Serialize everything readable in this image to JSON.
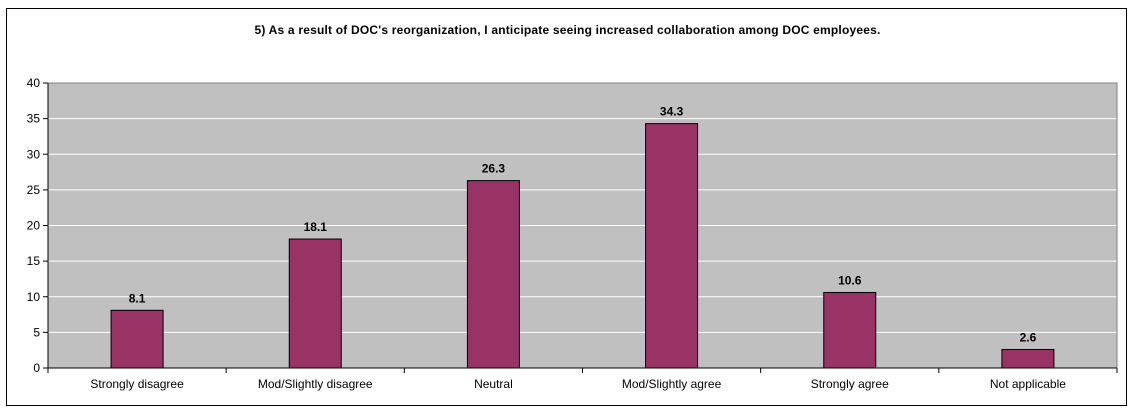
{
  "chart_data": {
    "type": "bar",
    "title": "5) As a result of DOC's reorganization, I anticipate seeing increased collaboration among DOC employees.",
    "categories": [
      "Strongly disagree",
      "Mod/Slightly disagree",
      "Neutral",
      "Mod/Slightly agree",
      "Strongly agree",
      "Not applicable"
    ],
    "values": [
      8.1,
      18.1,
      26.3,
      34.3,
      10.6,
      2.6
    ],
    "value_labels": [
      "8.1",
      "18.1",
      "26.3",
      "34.3",
      "10.6",
      "2.6"
    ],
    "ylim": [
      0,
      40
    ],
    "yticks": [
      "0",
      "5",
      "10",
      "15",
      "20",
      "25",
      "30",
      "35",
      "40"
    ],
    "xlabel": "",
    "ylabel": "",
    "grid": true,
    "legend": "none",
    "colors": {
      "bar": "#993366",
      "plot_background": "#c0c0c0",
      "gridline": "#ffffff",
      "axis": "#000000"
    }
  }
}
